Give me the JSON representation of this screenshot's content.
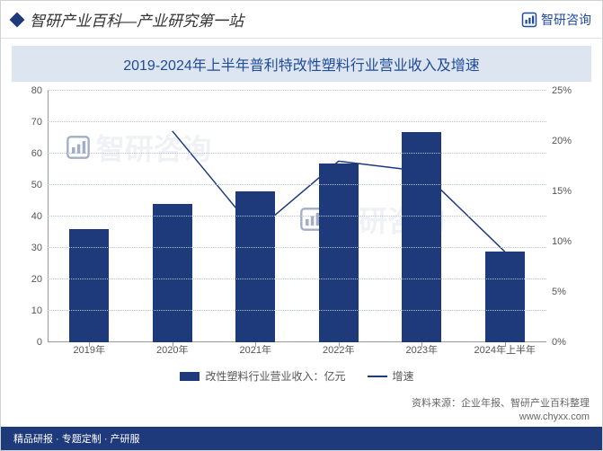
{
  "header": {
    "title": "智研产业百科—产业研究第一站",
    "brand": "智研咨询"
  },
  "chart": {
    "title": "2019-2024年上半年普利特改性塑料行业营业收入及增速",
    "type": "bar+line",
    "categories": [
      "2019年",
      "2020年",
      "2021年",
      "2022年",
      "2023年",
      "2024年上半年"
    ],
    "bars": {
      "label": "改性塑料行业营业收入：亿元",
      "values": [
        36,
        44,
        48,
        57,
        67,
        29
      ],
      "color": "#1f3a7a",
      "bar_width_ratio": 0.48
    },
    "line": {
      "label": "增速",
      "values": [
        null,
        21,
        11,
        18,
        17,
        9
      ],
      "color": "#1f3a7a",
      "stroke_width": 1.5
    },
    "y_left": {
      "min": 0,
      "max": 80,
      "step": 10,
      "label_fontsize": 11
    },
    "y_right": {
      "min": 0,
      "max": 25,
      "step": 5,
      "suffix": "%",
      "label_fontsize": 11
    },
    "grid_color": "#b5c3d6",
    "background_color": "#ffffff",
    "title_band_color": "#dce5f0",
    "title_color": "#1f4b99",
    "title_fontsize": 16
  },
  "source": {
    "line1": "资料来源：企业年报、智研产业百科整理",
    "line2": "www.chyxx.com"
  },
  "footer": {
    "left": "精品研报 · 专题定制 · 产研服",
    "right": ""
  },
  "watermark": "智研咨询"
}
